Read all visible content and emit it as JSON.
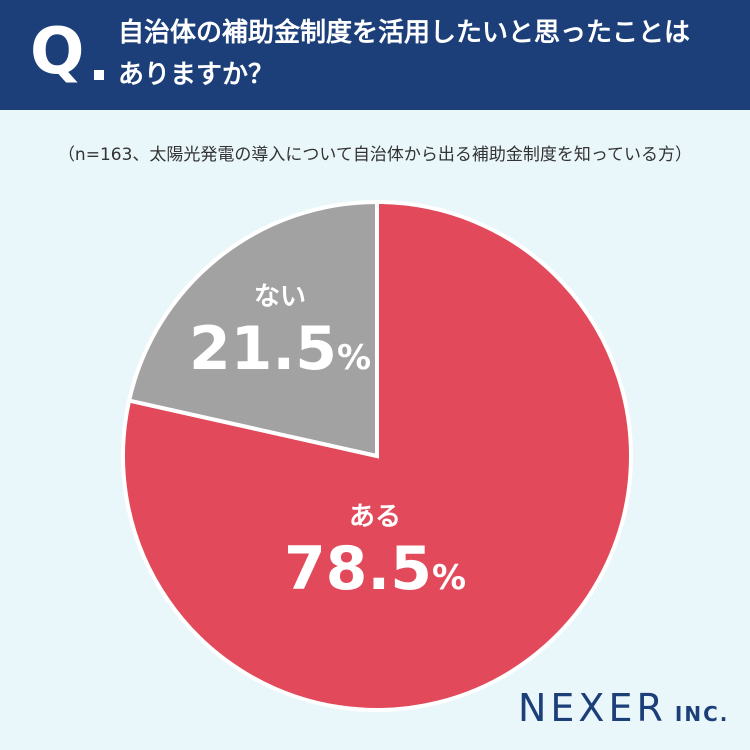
{
  "header": {
    "q_letter": "Q",
    "question_line1": "自治体の補助金制度を活用したいと思ったことは",
    "question_line2": "ありますか？"
  },
  "note": "（n=163、太陽光発電の導入について自治体から出る補助金制度を知っている方）",
  "chart_data": {
    "type": "pie",
    "slices": [
      {
        "label": "ある",
        "value": 78.5,
        "display": "78.5",
        "unit": "%",
        "color": "#e2495a"
      },
      {
        "label": "ない",
        "value": 21.5,
        "display": "21.5",
        "unit": "%",
        "color": "#a2a2a2"
      }
    ],
    "start": "12 o'clock",
    "direction": "clockwise"
  },
  "brand": {
    "main": "NEXER",
    "sub": "INC.",
    "color": "#1c3f7a"
  }
}
